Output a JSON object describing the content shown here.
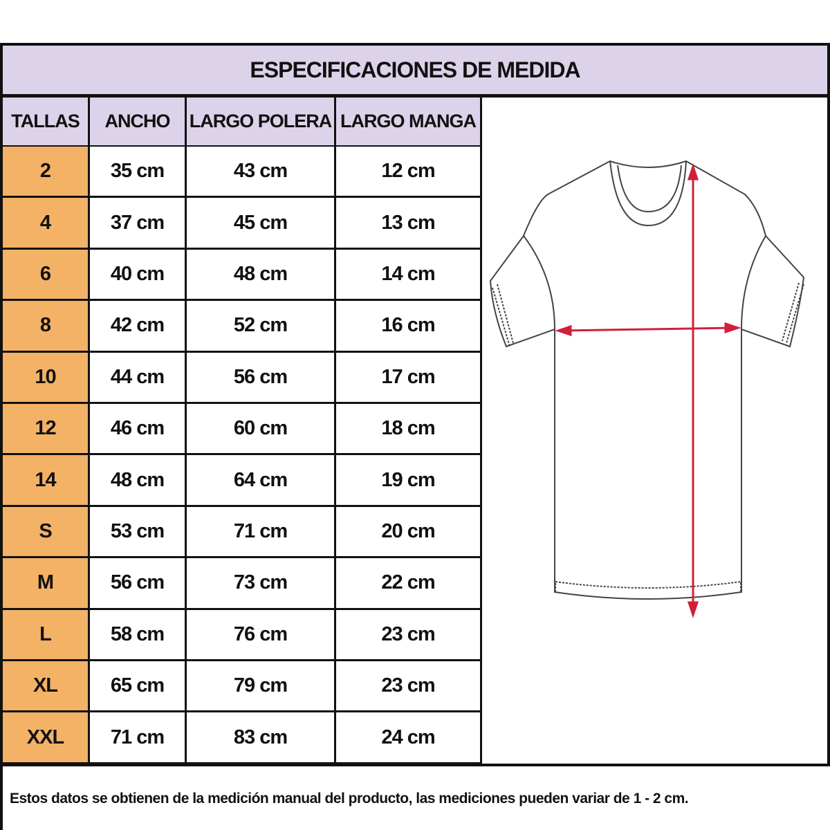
{
  "title": "ESPECIFICACIONES DE MEDIDA",
  "headers": [
    "TALLAS",
    "ANCHO",
    "LARGO POLERA",
    "LARGO MANGA"
  ],
  "rows": [
    [
      "2",
      "35 cm",
      "43 cm",
      "12 cm"
    ],
    [
      "4",
      "37 cm",
      "45 cm",
      "13 cm"
    ],
    [
      "6",
      "40 cm",
      "48 cm",
      "14 cm"
    ],
    [
      "8",
      "42 cm",
      "52 cm",
      "16 cm"
    ],
    [
      "10",
      "44 cm",
      "56 cm",
      "17 cm"
    ],
    [
      "12",
      "46 cm",
      "60 cm",
      "18 cm"
    ],
    [
      "14",
      "48 cm",
      "64 cm",
      "19 cm"
    ],
    [
      "S",
      "53 cm",
      "71 cm",
      "20 cm"
    ],
    [
      "M",
      "56 cm",
      "73 cm",
      "22 cm"
    ],
    [
      "L",
      "58 cm",
      "76 cm",
      "23 cm"
    ],
    [
      "XL",
      "65 cm",
      "79 cm",
      "23 cm"
    ],
    [
      "XXL",
      "71 cm",
      "83 cm",
      "24 cm"
    ]
  ],
  "footer": "Estos datos se obtienen de la medición manual del producto, las mediciones pueden variar de 1 - 2 cm.",
  "colors": {
    "header_bg": "#dcd3ea",
    "size_bg": "#f4b266",
    "arrow": "#d0203a"
  },
  "illustration": "t-shirt-measurement-diagram"
}
